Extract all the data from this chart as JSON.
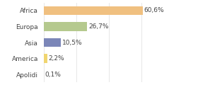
{
  "categories": [
    "Africa",
    "Europa",
    "Asia",
    "America",
    "Apolidi"
  ],
  "values": [
    60.6,
    26.7,
    10.5,
    2.2,
    0.1
  ],
  "labels": [
    "60,6%",
    "26,7%",
    "10,5%",
    "2,2%",
    "0,1%"
  ],
  "bar_colors": [
    "#f0c080",
    "#b5c98e",
    "#7b86b8",
    "#f0d570",
    "#e8e8e8"
  ],
  "background_color": "#ffffff",
  "xlim": [
    0,
    80
  ],
  "bar_height": 0.55,
  "label_fontsize": 6.5,
  "tick_fontsize": 6.5,
  "figwidth": 2.8,
  "figheight": 1.2,
  "dpi": 100
}
